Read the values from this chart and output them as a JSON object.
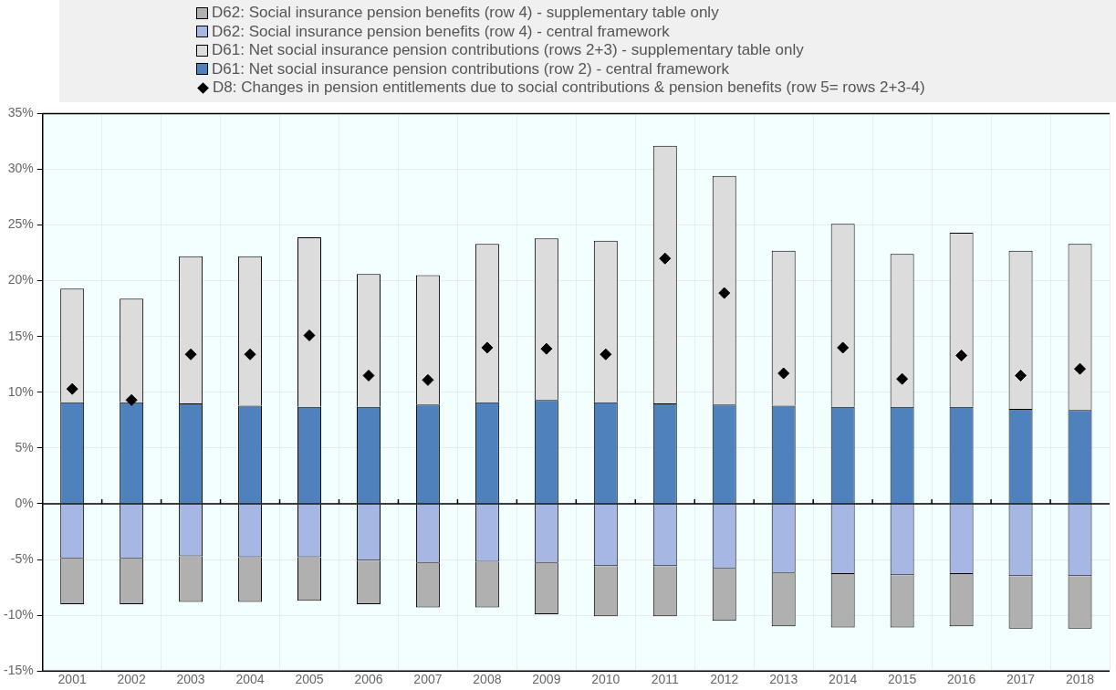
{
  "chart_data": {
    "type": "bar",
    "stacked": true,
    "legend": "top",
    "grid": true,
    "marker": "diamond",
    "categories": [
      "2001",
      "2002",
      "2003",
      "2004",
      "2005",
      "2006",
      "2007",
      "2008",
      "2009",
      "2010",
      "2011",
      "2012",
      "2013",
      "2014",
      "2015",
      "2016",
      "2017",
      "2018"
    ],
    "ylim": [
      -15,
      35
    ],
    "yticks": [
      {
        "value": -15,
        "label": "-15%"
      },
      {
        "value": -10,
        "label": "-10%"
      },
      {
        "value": -5,
        "label": "-5%"
      },
      {
        "value": 0,
        "label": "0%"
      },
      {
        "value": 5,
        "label": "5%"
      },
      {
        "value": 10,
        "label": "10%"
      },
      {
        "value": 15,
        "label": "15%"
      },
      {
        "value": 20,
        "label": "20%"
      },
      {
        "value": 25,
        "label": "25%"
      },
      {
        "value": 30,
        "label": "30%"
      },
      {
        "value": 35,
        "label": "35%"
      }
    ],
    "series": [
      {
        "name": "D61: Net social insurance pension contributions (row 2) - central framework",
        "color": "#4f81bd",
        "values": [
          9.1,
          9.1,
          9.0,
          8.8,
          8.7,
          8.7,
          8.9,
          9.1,
          9.3,
          9.1,
          9.0,
          8.9,
          8.8,
          8.7,
          8.7,
          8.7,
          8.5,
          8.4
        ]
      },
      {
        "name": "D61: Net social insurance pension contributions (rows 2+3) - supplementary table only",
        "color": "#dcdcdc",
        "values": [
          10.2,
          9.3,
          13.2,
          13.4,
          15.2,
          11.9,
          11.6,
          14.2,
          14.5,
          14.5,
          23.1,
          20.5,
          13.9,
          16.4,
          13.7,
          15.6,
          14.2,
          14.9
        ]
      },
      {
        "name": "D62: Social insurance pension benefits (row 4) - central framework",
        "color": "#a7b7e3",
        "values": [
          -4.9,
          -4.9,
          -4.7,
          -4.8,
          -4.8,
          -5.1,
          -5.3,
          -5.2,
          -5.3,
          -5.6,
          -5.6,
          -5.8,
          -6.2,
          -6.3,
          -6.4,
          -6.3,
          -6.5,
          -6.5
        ]
      },
      {
        "name": "D62: Social insurance pension benefits (row 4) - supplementary table only",
        "color": "#b0b0b0",
        "values": [
          -4.1,
          -4.1,
          -4.1,
          -4.0,
          -3.9,
          -3.9,
          -4.0,
          -4.1,
          -4.6,
          -4.5,
          -4.5,
          -4.7,
          -4.8,
          -4.8,
          -4.7,
          -4.7,
          -4.7,
          -4.7
        ]
      },
      {
        "name": "D8: Changes in pension entitlements due to social contributions & pension benefits (row 5= rows 2+3-4)",
        "type": "scatter",
        "color": "#000000",
        "values": [
          10.3,
          9.3,
          13.4,
          13.4,
          15.1,
          11.5,
          11.1,
          14.0,
          13.9,
          13.4,
          22.0,
          18.9,
          11.7,
          14.0,
          11.2,
          13.3,
          11.5,
          12.1
        ]
      }
    ]
  }
}
